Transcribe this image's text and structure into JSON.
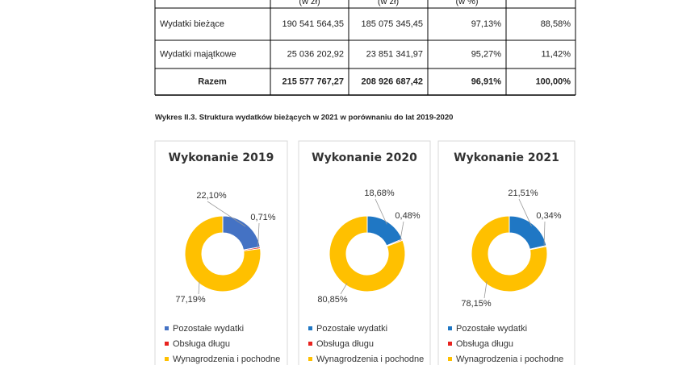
{
  "table": {
    "header": [
      "(w zł)",
      "(w zł)",
      "(w %)"
    ],
    "rows": [
      [
        "Wydatki bieżące",
        "190 541 564,35",
        "185 075 345,45",
        "97,13%",
        "88,58%"
      ],
      [
        "Wydatki majątkowe",
        "25 036 202,92",
        "23 851 341,97",
        "95,27%",
        "11,42%"
      ],
      [
        "Razem",
        "215 577 767,27",
        "208 926 687,42",
        "96,91%",
        "100,00%"
      ]
    ]
  },
  "caption": "Wykres II.3. Struktura wydatków bieżących w 2021 w porównaniu do lat 2019-2020",
  "chart_data": [
    {
      "type": "donut",
      "title": "Wykonanie 2019",
      "categories": [
        "Pozostałe wydatki",
        "Obsługa długu",
        "Wynagrodzenia i pochodne"
      ],
      "values": [
        22.1,
        0.71,
        77.19
      ],
      "value_labels": [
        "22,10%",
        "0,71%",
        "77,19%"
      ],
      "colors": [
        "#4472c4",
        "#e8231f",
        "#ffc000"
      ]
    },
    {
      "type": "donut",
      "title": "Wykonanie 2020",
      "categories": [
        "Pozostałe wydatki",
        "Obsługa długu",
        "Wynagrodzenia i pochodne"
      ],
      "values": [
        18.68,
        0.48,
        80.85
      ],
      "value_labels": [
        "18,68%",
        "0,48%",
        "80,85%"
      ],
      "colors": [
        "#1f77c4",
        "#e8231f",
        "#ffc000"
      ]
    },
    {
      "type": "donut",
      "title": "Wykonanie 2021",
      "categories": [
        "Pozostałe wydatki",
        "Obsługa długu",
        "Wynagrodzenia i pochodne"
      ],
      "values": [
        21.51,
        0.34,
        78.15
      ],
      "value_labels": [
        "21,51%",
        "0,34%",
        "78,15%"
      ],
      "colors": [
        "#1f77c4",
        "#e8231f",
        "#ffc000"
      ]
    }
  ]
}
